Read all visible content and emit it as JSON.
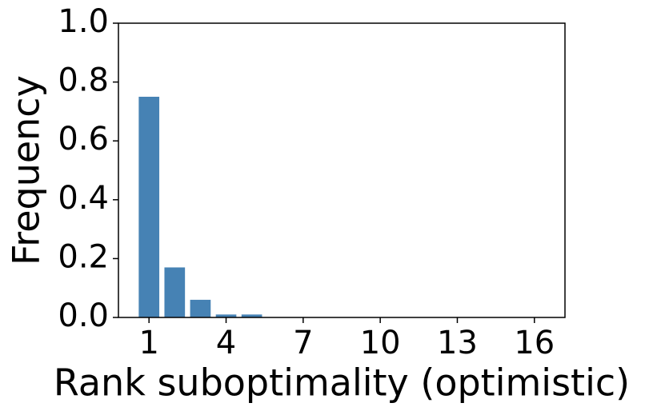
{
  "chart_data": {
    "type": "bar",
    "x_label": "Rank suboptimality (optimistic)",
    "y_label": "Frequency",
    "x": [
      1,
      2,
      3,
      4,
      5,
      6,
      7,
      8,
      9,
      10,
      11,
      12,
      13,
      14,
      15,
      16
    ],
    "values": [
      0.75,
      0.17,
      0.06,
      0.01,
      0.01,
      0,
      0,
      0,
      0,
      0,
      0,
      0,
      0,
      0,
      0,
      0
    ],
    "color": "#4682b4",
    "xlim": [
      -0.19,
      17.19
    ],
    "xticks": [
      1,
      4,
      7,
      10,
      13,
      16
    ],
    "ylim": [
      0,
      1
    ],
    "yticks": [
      {
        "value": 0,
        "label": "0.0"
      },
      0.2,
      0.4,
      0.6,
      0.8,
      {
        "value": 1,
        "label": "1.0"
      }
    ],
    "bar_width": 0.8
  }
}
